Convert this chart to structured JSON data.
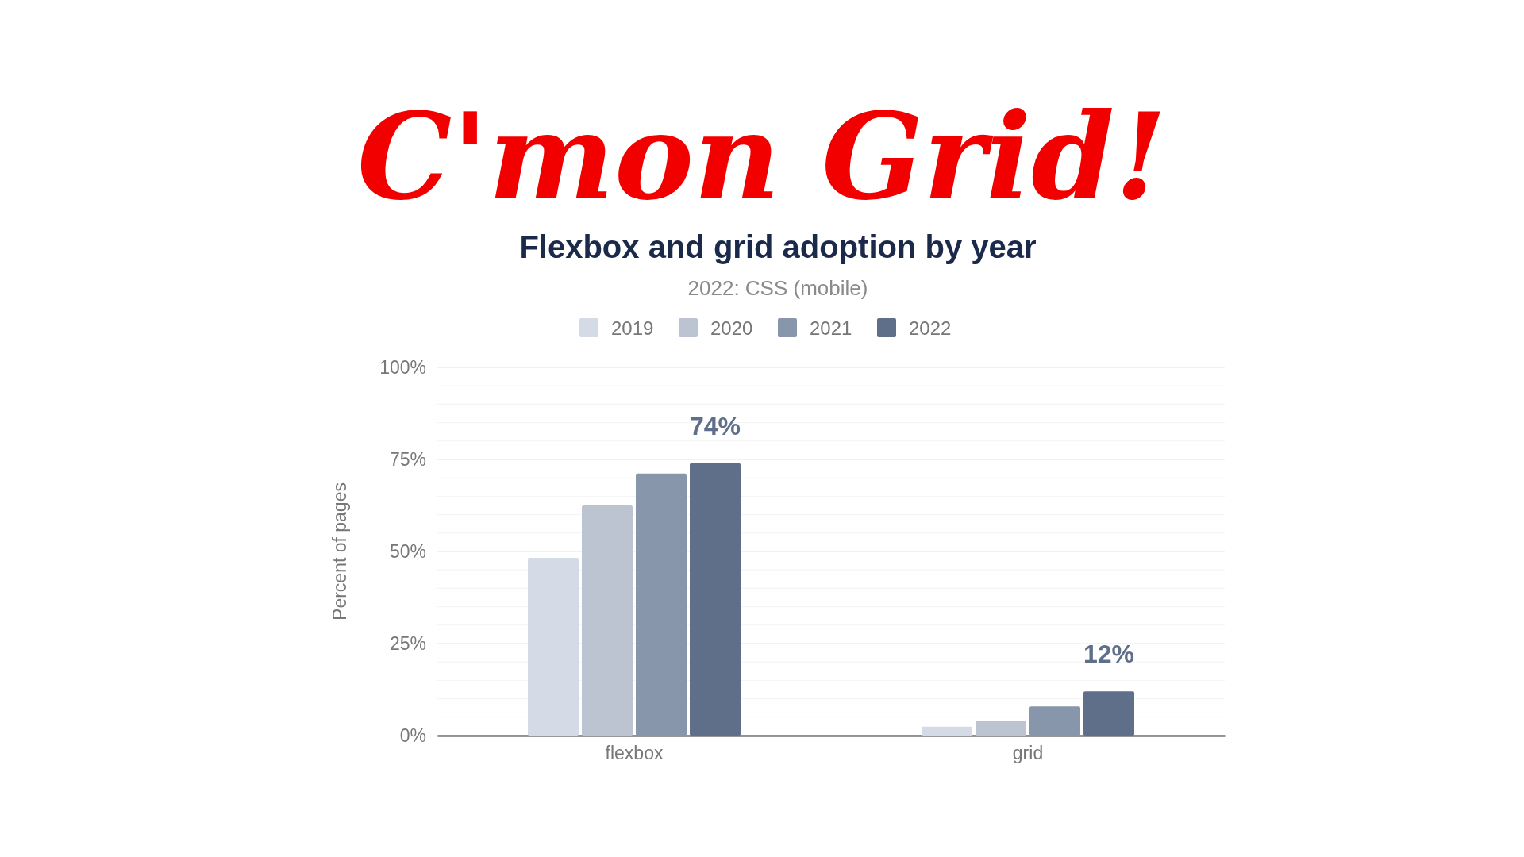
{
  "chart_data": {
    "type": "bar",
    "title": "C'mon Grid!",
    "subtitle": "Flexbox and grid adoption by year",
    "annotations": [
      "2022: CSS (mobile)"
    ],
    "ylabel": "Percent of pages",
    "categories": [
      "flexbox",
      "grid"
    ],
    "series": [
      {
        "name": "2019",
        "color": "#d5dbe6",
        "values": [
          48.3,
          2.4
        ]
      },
      {
        "name": "2020",
        "color": "#bcc4d2",
        "values": [
          62.5,
          4
        ]
      },
      {
        "name": "2021",
        "color": "#8896ab",
        "values": [
          71.2,
          7.9
        ]
      },
      {
        "name": "2022",
        "color": "#5f6f8a",
        "values": [
          74,
          12
        ],
        "value_labels": [
          "74%",
          "12%"
        ]
      }
    ],
    "ylim": [
      0,
      100
    ],
    "yticks": [
      {
        "value": 0,
        "label": "0%"
      },
      {
        "value": 5,
        "label": null
      },
      {
        "value": 10,
        "label": null
      },
      {
        "value": 15,
        "label": null
      },
      {
        "value": 20,
        "label": null
      },
      {
        "value": 25,
        "label": "25%"
      },
      {
        "value": 30,
        "label": null
      },
      {
        "value": 35,
        "label": null
      },
      {
        "value": 40,
        "label": null
      },
      {
        "value": 45,
        "label": null
      },
      {
        "value": 50,
        "label": "50%"
      },
      {
        "value": 55,
        "label": null
      },
      {
        "value": 60,
        "label": null
      },
      {
        "value": 65,
        "label": null
      },
      {
        "value": 70,
        "label": null
      },
      {
        "value": 75,
        "label": "75%"
      },
      {
        "value": 80,
        "label": null
      },
      {
        "value": 85,
        "label": null
      },
      {
        "value": 90,
        "label": null
      },
      {
        "value": 95,
        "label": null
      },
      {
        "value": 100,
        "label": "100%"
      }
    ],
    "grid": "y",
    "legend": "top"
  }
}
